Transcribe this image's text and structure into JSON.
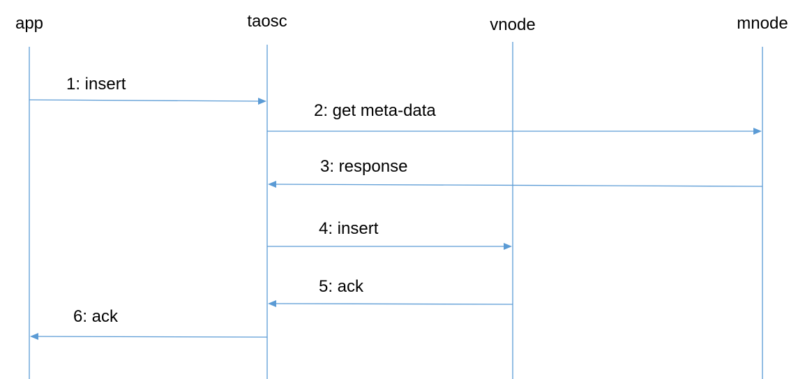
{
  "diagram": {
    "type": "sequence",
    "line_color": "#5b9bd5",
    "participants": [
      "app",
      "taosc",
      "vnode",
      "mnode"
    ],
    "messages": [
      {
        "label": "1: insert",
        "from": "app",
        "to": "taosc"
      },
      {
        "label": "2: get meta-data",
        "from": "taosc",
        "to": "mnode"
      },
      {
        "label": "3: response",
        "from": "mnode",
        "to": "taosc"
      },
      {
        "label": "4: insert",
        "from": "taosc",
        "to": "vnode"
      },
      {
        "label": "5: ack",
        "from": "vnode",
        "to": "taosc"
      },
      {
        "label": "6: ack",
        "from": "taosc",
        "to": "app"
      }
    ]
  }
}
